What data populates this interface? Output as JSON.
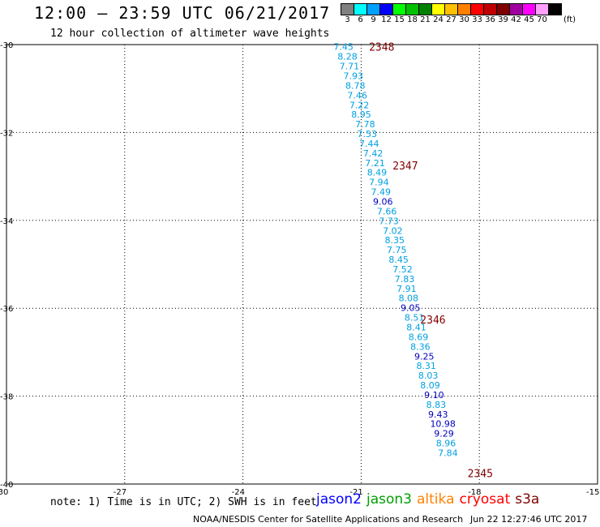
{
  "header": {
    "title": "12:00 – 23:59 UTC 06/21/2017",
    "subtitle": "12 hour collection of altimeter wave heights"
  },
  "legend": {
    "unit": "(ft)",
    "items": [
      {
        "label": "3",
        "color": "#808080"
      },
      {
        "label": "6",
        "color": "#00ffff"
      },
      {
        "label": "9",
        "color": "#00a0ff"
      },
      {
        "label": "12",
        "color": "#0000ff"
      },
      {
        "label": "15",
        "color": "#00ff00"
      },
      {
        "label": "18",
        "color": "#00c000"
      },
      {
        "label": "21",
        "color": "#008000"
      },
      {
        "label": "24",
        "color": "#ffff00"
      },
      {
        "label": "27",
        "color": "#ffc000"
      },
      {
        "label": "30",
        "color": "#ff8000"
      },
      {
        "label": "33",
        "color": "#ff0000"
      },
      {
        "label": "36",
        "color": "#c00000"
      },
      {
        "label": "39",
        "color": "#800000"
      },
      {
        "label": "42",
        "color": "#a000a0"
      },
      {
        "label": "45",
        "color": "#ff00ff"
      },
      {
        "label": "70",
        "color": "#ffa0ff"
      },
      {
        "label": "",
        "color": "#000000"
      }
    ]
  },
  "axes": {
    "lon_ticks": [
      -30,
      -27,
      -24,
      -21,
      -18,
      -15
    ],
    "lat_ticks": [
      -30,
      -32,
      -34,
      -36,
      -38,
      -40
    ],
    "lon_range": [
      -30,
      -15
    ],
    "lat_range": [
      -40,
      -30
    ]
  },
  "times": [
    {
      "label": "2348",
      "lon": -20.8,
      "lat": -30.05
    },
    {
      "label": "2347",
      "lon": -20.2,
      "lat": -32.75
    },
    {
      "label": "2346",
      "lon": -19.5,
      "lat": -36.25
    },
    {
      "label": "2345",
      "lon": -18.3,
      "lat": -39.75
    }
  ],
  "measurements": [
    {
      "v": "7.45",
      "lon": -21.7,
      "lat": -30.05,
      "c": "#00a0e0"
    },
    {
      "v": "8.28",
      "lon": -21.6,
      "lat": -30.27,
      "c": "#00a0e0"
    },
    {
      "v": "7.71",
      "lon": -21.55,
      "lat": -30.49,
      "c": "#00a0e0"
    },
    {
      "v": "7.93",
      "lon": -21.45,
      "lat": -30.71,
      "c": "#00a0e0"
    },
    {
      "v": "8.78",
      "lon": -21.4,
      "lat": -30.93,
      "c": "#00a0e0"
    },
    {
      "v": "7.46",
      "lon": -21.35,
      "lat": -31.15,
      "c": "#00a0e0"
    },
    {
      "v": "7.22",
      "lon": -21.3,
      "lat": -31.37,
      "c": "#00a0e0"
    },
    {
      "v": "8.95",
      "lon": -21.25,
      "lat": -31.59,
      "c": "#00a0e0"
    },
    {
      "v": "7.78",
      "lon": -21.15,
      "lat": -31.81,
      "c": "#00a0e0"
    },
    {
      "v": "7.53",
      "lon": -21.1,
      "lat": -32.03,
      "c": "#00a0e0"
    },
    {
      "v": "7.44",
      "lon": -21.05,
      "lat": -32.25,
      "c": "#00a0e0"
    },
    {
      "v": "7.42",
      "lon": -20.95,
      "lat": -32.47,
      "c": "#00a0e0"
    },
    {
      "v": "7.21",
      "lon": -20.9,
      "lat": -32.69,
      "c": "#00a0e0"
    },
    {
      "v": "8.49",
      "lon": -20.85,
      "lat": -32.91,
      "c": "#00a0e0"
    },
    {
      "v": "7.94",
      "lon": -20.8,
      "lat": -33.13,
      "c": "#00a0e0"
    },
    {
      "v": "7.49",
      "lon": -20.75,
      "lat": -33.35,
      "c": "#00a0e0"
    },
    {
      "v": "9.06",
      "lon": -20.7,
      "lat": -33.57,
      "c": "#0000c0"
    },
    {
      "v": "7.66",
      "lon": -20.6,
      "lat": -33.79,
      "c": "#00a0e0"
    },
    {
      "v": "7.73",
      "lon": -20.55,
      "lat": -34.01,
      "c": "#00a0e0"
    },
    {
      "v": "7.02",
      "lon": -20.45,
      "lat": -34.23,
      "c": "#00a0e0"
    },
    {
      "v": "8.35",
      "lon": -20.4,
      "lat": -34.45,
      "c": "#00a0e0"
    },
    {
      "v": "7.75",
      "lon": -20.35,
      "lat": -34.67,
      "c": "#00a0e0"
    },
    {
      "v": "8.45",
      "lon": -20.3,
      "lat": -34.89,
      "c": "#00a0e0"
    },
    {
      "v": "7.52",
      "lon": -20.2,
      "lat": -35.11,
      "c": "#00a0e0"
    },
    {
      "v": "7.83",
      "lon": -20.15,
      "lat": -35.33,
      "c": "#00a0e0"
    },
    {
      "v": "7.91",
      "lon": -20.1,
      "lat": -35.55,
      "c": "#00a0e0"
    },
    {
      "v": "8.08",
      "lon": -20.05,
      "lat": -35.77,
      "c": "#00a0e0"
    },
    {
      "v": "9.05",
      "lon": -20.0,
      "lat": -35.99,
      "c": "#0000c0"
    },
    {
      "v": "8.51",
      "lon": -19.9,
      "lat": -36.21,
      "c": "#00a0e0"
    },
    {
      "v": "8.41",
      "lon": -19.85,
      "lat": -36.43,
      "c": "#00a0e0"
    },
    {
      "v": "8.69",
      "lon": -19.8,
      "lat": -36.65,
      "c": "#00a0e0"
    },
    {
      "v": "8.36",
      "lon": -19.75,
      "lat": -36.87,
      "c": "#00a0e0"
    },
    {
      "v": "9.25",
      "lon": -19.65,
      "lat": -37.09,
      "c": "#0000c0"
    },
    {
      "v": "8.31",
      "lon": -19.6,
      "lat": -37.31,
      "c": "#00a0e0"
    },
    {
      "v": "8.03",
      "lon": -19.55,
      "lat": -37.53,
      "c": "#00a0e0"
    },
    {
      "v": "8.09",
      "lon": -19.5,
      "lat": -37.75,
      "c": "#00a0e0"
    },
    {
      "v": "9.10",
      "lon": -19.4,
      "lat": -37.97,
      "c": "#0000c0"
    },
    {
      "v": "8.83",
      "lon": -19.35,
      "lat": -38.19,
      "c": "#00a0e0"
    },
    {
      "v": "9.43",
      "lon": -19.3,
      "lat": -38.41,
      "c": "#0000c0"
    },
    {
      "v": "10.98",
      "lon": -19.25,
      "lat": -38.63,
      "c": "#0000c0"
    },
    {
      "v": "9.29",
      "lon": -19.15,
      "lat": -38.85,
      "c": "#0000c0"
    },
    {
      "v": "8.96",
      "lon": -19.1,
      "lat": -39.07,
      "c": "#00a0e0"
    },
    {
      "v": "7.84",
      "lon": -19.05,
      "lat": -39.29,
      "c": "#00a0e0"
    }
  ],
  "footer": {
    "note": "note: 1) Time is in UTC; 2) SWH is in feet",
    "satellites": [
      {
        "name": "jason2",
        "color": "#0000ff"
      },
      {
        "name": "jason3",
        "color": "#00a000"
      },
      {
        "name": "altika",
        "color": "#ff8000"
      },
      {
        "name": "cryosat",
        "color": "#ff0000"
      },
      {
        "name": "s3a",
        "color": "#800000"
      }
    ],
    "credit": "NOAA/NESDIS Center for Satellite Applications and Research",
    "generated": "Jun 22 12:27:46 UTC 2017"
  }
}
